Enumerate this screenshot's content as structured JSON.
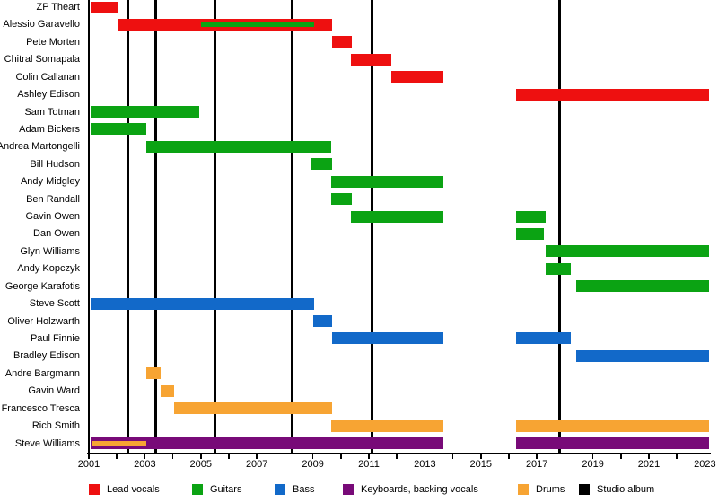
{
  "chart_data": {
    "type": "timeline",
    "title": "",
    "x_axis": {
      "start": 2001,
      "end": 2023,
      "labeled_ticks": [
        2001,
        2003,
        2005,
        2007,
        2009,
        2011,
        2013,
        2015,
        2017,
        2019,
        2021,
        2023
      ],
      "minor_tick_every_years": 1
    },
    "present": 2023.15,
    "album_release_times": [
      2002.4,
      2003.4,
      2005.5,
      2008.25,
      2011.1,
      2017.8
    ],
    "roles": {
      "lead_vocals": {
        "label": "Lead vocals",
        "color": "#ee1010"
      },
      "guitars": {
        "label": "Guitars",
        "color": "#0ba313"
      },
      "bass": {
        "label": "Bass",
        "color": "#1269c9"
      },
      "keyboards": {
        "label": "Keyboards, backing vocals",
        "color": "#780a78"
      },
      "drums": {
        "label": "Drums",
        "color": "#f7a433"
      },
      "studio_album": {
        "label": "Studio album",
        "color": "#000000"
      }
    },
    "legend": [
      "lead_vocals",
      "guitars",
      "bass",
      "keyboards",
      "drums",
      "studio_album"
    ],
    "members": [
      {
        "name": "ZP Theart",
        "role": "lead_vocals",
        "bars": [
          [
            2001.05,
            2002.05
          ]
        ]
      },
      {
        "name": "Alessio Garavello",
        "role": "lead_vocals",
        "bars": [
          [
            2002.05,
            2009.7
          ]
        ],
        "sub_role": "guitars",
        "sub_bars": [
          [
            2005.0,
            2009.05
          ]
        ]
      },
      {
        "name": "Pete Morten",
        "role": "lead_vocals",
        "bars": [
          [
            2009.7,
            2010.4
          ]
        ]
      },
      {
        "name": "Chitral Somapala",
        "role": "lead_vocals",
        "bars": [
          [
            2010.35,
            2011.8
          ]
        ]
      },
      {
        "name": "Colin Callanan",
        "role": "lead_vocals",
        "bars": [
          [
            2011.8,
            2013.65
          ]
        ]
      },
      {
        "name": "Ashley Edison",
        "role": "lead_vocals",
        "bars": [
          [
            2016.25,
            2023.15
          ]
        ]
      },
      {
        "name": "Sam Totman",
        "role": "guitars",
        "bars": [
          [
            2001.05,
            2004.95
          ]
        ]
      },
      {
        "name": "Adam Bickers",
        "role": "guitars",
        "bars": [
          [
            2001.05,
            2003.05
          ]
        ]
      },
      {
        "name": "Andrea Martongelli",
        "role": "guitars",
        "bars": [
          [
            2003.05,
            2009.65
          ]
        ]
      },
      {
        "name": "Bill Hudson",
        "role": "guitars",
        "bars": [
          [
            2008.95,
            2009.7
          ]
        ]
      },
      {
        "name": "Andy Midgley",
        "role": "guitars",
        "bars": [
          [
            2009.65,
            2013.65
          ]
        ]
      },
      {
        "name": "Ben Randall",
        "role": "guitars",
        "bars": [
          [
            2009.65,
            2010.4
          ]
        ]
      },
      {
        "name": "Gavin Owen",
        "role": "guitars",
        "bars": [
          [
            2010.35,
            2013.65
          ],
          [
            2016.25,
            2017.3
          ]
        ]
      },
      {
        "name": "Dan Owen",
        "role": "guitars",
        "bars": [
          [
            2016.25,
            2017.25
          ]
        ]
      },
      {
        "name": "Glyn Williams",
        "role": "guitars",
        "bars": [
          [
            2017.3,
            2023.15
          ]
        ]
      },
      {
        "name": "Andy Kopczyk",
        "role": "guitars",
        "bars": [
          [
            2017.3,
            2018.2
          ]
        ]
      },
      {
        "name": "George Karafotis",
        "role": "guitars",
        "bars": [
          [
            2018.4,
            2023.15
          ]
        ]
      },
      {
        "name": "Steve Scott",
        "role": "bass",
        "bars": [
          [
            2001.05,
            2009.05
          ]
        ]
      },
      {
        "name": "Oliver Holzwarth",
        "role": "bass",
        "bars": [
          [
            2009.0,
            2009.7
          ]
        ]
      },
      {
        "name": "Paul Finnie",
        "role": "bass",
        "bars": [
          [
            2009.7,
            2013.65
          ],
          [
            2016.25,
            2018.2
          ]
        ]
      },
      {
        "name": "Bradley Edison",
        "role": "bass",
        "bars": [
          [
            2018.4,
            2023.15
          ]
        ]
      },
      {
        "name": "Andre Bargmann",
        "role": "drums",
        "bars": [
          [
            2003.05,
            2003.55
          ]
        ]
      },
      {
        "name": "Gavin Ward",
        "role": "drums",
        "bars": [
          [
            2003.55,
            2004.05
          ]
        ]
      },
      {
        "name": "Francesco Tresca",
        "role": "drums",
        "bars": [
          [
            2004.05,
            2009.7
          ]
        ]
      },
      {
        "name": "Rich Smith",
        "role": "drums",
        "bars": [
          [
            2009.65,
            2013.65
          ],
          [
            2016.25,
            2023.15
          ]
        ]
      },
      {
        "name": "Steve Williams",
        "role": "keyboards",
        "bars": [
          [
            2001.05,
            2013.65
          ],
          [
            2016.25,
            2023.15
          ]
        ],
        "sub_role": "drums",
        "sub_bars": [
          [
            2001.1,
            2003.05
          ]
        ]
      }
    ]
  }
}
